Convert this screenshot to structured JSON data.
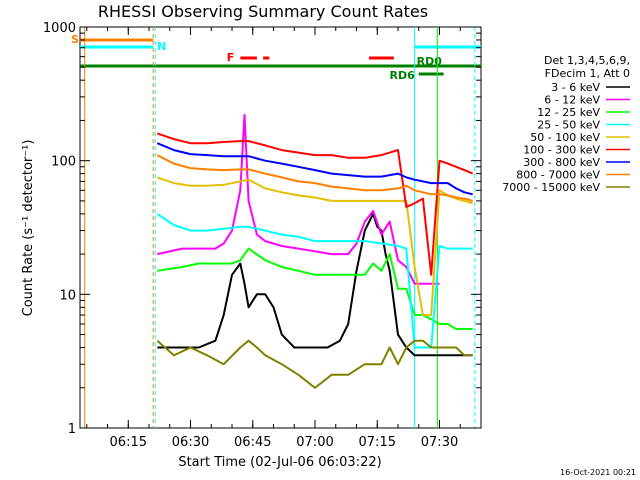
{
  "chart_data": {
    "type": "line",
    "title": "RHESSI Observing Summary Count Rates",
    "xlabel": "Start Time (02-Jul-06 06:03:22)",
    "ylabel": "Count Rate (s⁻¹ detector⁻¹)",
    "y_scale": "log",
    "ylim": [
      1,
      1000
    ],
    "xlim": [
      "06:03:22",
      "07:40:00"
    ],
    "x_ticks": [
      "06:15",
      "06:30",
      "06:45",
      "07:00",
      "07:15",
      "07:30"
    ],
    "y_ticks": [
      "1",
      "10",
      "100",
      "1000"
    ],
    "legend_header": [
      "Det 1,3,4,5,6,9,",
      "FDecim 1, Att 0"
    ],
    "legend_position": "right",
    "footer_date": "16-Oct-2021 00:21",
    "flags": [
      {
        "label": "S",
        "color": "#ff8000",
        "segments": [
          [
            "06:03:22",
            "06:21:00"
          ]
        ]
      },
      {
        "label": "N",
        "color": "#00ffff",
        "segments": [
          [
            "06:03:22",
            "06:21:00"
          ],
          [
            "07:24:00",
            "07:40:00"
          ]
        ]
      },
      {
        "label": "F",
        "color": "#ff0000",
        "segments": [
          [
            "06:42:00",
            "06:46:00"
          ],
          [
            "06:47:30",
            "06:49:00"
          ],
          [
            "07:13:00",
            "07:19:00"
          ]
        ]
      },
      {
        "label": "RD0",
        "color": "#008000",
        "segments": [
          [
            "06:03:22",
            "07:40:00"
          ]
        ]
      },
      {
        "label": "RD6",
        "color": "#008000",
        "segments": [
          [
            "07:25:00",
            "07:31:00"
          ]
        ]
      }
    ],
    "series": [
      {
        "name": "3 - 6 keV",
        "color": "#000000",
        "x": [
          "06:22",
          "06:28",
          "06:32",
          "06:36",
          "06:38",
          "06:40",
          "06:42",
          "06:43",
          "06:44",
          "06:46",
          "06:48",
          "06:50",
          "06:52",
          "06:55",
          "06:58",
          "07:00",
          "07:03",
          "07:06",
          "07:08",
          "07:10",
          "07:12",
          "07:14",
          "07:15",
          "07:16",
          "07:17",
          "07:18",
          "07:20",
          "07:22",
          "07:24",
          "07:26",
          "07:28",
          "07:30",
          "07:32",
          "07:34",
          "07:36",
          "07:38"
        ],
        "values": [
          4,
          4,
          4,
          4.5,
          7,
          14,
          17,
          12,
          8,
          10,
          10,
          8,
          5,
          4,
          4,
          4,
          4,
          4.5,
          6,
          15,
          30,
          40,
          32,
          30,
          20,
          15,
          5,
          4,
          3.5,
          3.5,
          3.5,
          3.5,
          3.5,
          3.5,
          3.5,
          3.5
        ]
      },
      {
        "name": "6 - 12 keV",
        "color": "#ff00ff",
        "x": [
          "06:22",
          "06:28",
          "06:32",
          "06:36",
          "06:38",
          "06:40",
          "06:42",
          "06:43",
          "06:44",
          "06:46",
          "06:48",
          "06:52",
          "06:56",
          "07:00",
          "07:04",
          "07:08",
          "07:10",
          "07:12",
          "07:14",
          "07:16",
          "07:18",
          "07:20",
          "07:22",
          "07:24",
          "07:26",
          "07:28",
          "07:30"
        ],
        "values": [
          20,
          22,
          22,
          22,
          24,
          30,
          60,
          220,
          50,
          28,
          25,
          23,
          22,
          21,
          20,
          20,
          24,
          35,
          42,
          28,
          35,
          18,
          16,
          12,
          12,
          12,
          12
        ]
      },
      {
        "name": "12 - 25 keV",
        "color": "#00ff00",
        "x": [
          "06:22",
          "06:28",
          "06:32",
          "06:36",
          "06:40",
          "06:42",
          "06:44",
          "06:48",
          "06:52",
          "06:56",
          "07:00",
          "07:04",
          "07:08",
          "07:12",
          "07:14",
          "07:16",
          "07:18",
          "07:20",
          "07:22",
          "07:24",
          "07:26",
          "07:28",
          "07:30",
          "07:32",
          "07:34",
          "07:36",
          "07:38"
        ],
        "values": [
          15,
          16,
          17,
          17,
          17,
          18,
          22,
          18,
          16,
          15,
          14,
          14,
          14,
          14,
          17,
          15,
          20,
          11,
          11,
          7,
          7,
          6.5,
          6,
          6,
          5.5,
          5.5,
          5.5
        ]
      },
      {
        "name": "25 - 50 keV",
        "color": "#00ffff",
        "x": [
          "06:22",
          "06:26",
          "06:30",
          "06:34",
          "06:38",
          "06:42",
          "06:44",
          "06:48",
          "06:52",
          "06:56",
          "07:00",
          "07:04",
          "07:08",
          "07:12",
          "07:16",
          "07:20",
          "07:22",
          "07:24",
          "07:26",
          "07:28",
          "07:30",
          "07:32",
          "07:34",
          "07:36",
          "07:38"
        ],
        "values": [
          40,
          33,
          30,
          30,
          31,
          32,
          32,
          30,
          28,
          27,
          25,
          25,
          25,
          25,
          24,
          23,
          22,
          4,
          4,
          4,
          23,
          22,
          22,
          22,
          22
        ]
      },
      {
        "name": "50 - 100 keV",
        "color": "#e0c000",
        "x": [
          "06:22",
          "06:26",
          "06:30",
          "06:34",
          "06:38",
          "06:42",
          "06:44",
          "06:48",
          "06:52",
          "06:56",
          "07:00",
          "07:04",
          "07:08",
          "07:12",
          "07:16",
          "07:20",
          "07:22",
          "07:24",
          "07:26",
          "07:28",
          "07:30",
          "07:32",
          "07:34",
          "07:36",
          "07:38"
        ],
        "values": [
          75,
          68,
          65,
          65,
          66,
          70,
          72,
          62,
          58,
          55,
          53,
          50,
          50,
          50,
          50,
          50,
          50,
          16,
          7,
          7,
          60,
          55,
          52,
          50,
          48
        ]
      },
      {
        "name": "100 - 300 keV",
        "color": "#ff0000",
        "x": [
          "06:22",
          "06:26",
          "06:30",
          "06:34",
          "06:38",
          "06:42",
          "06:44",
          "06:48",
          "06:52",
          "06:56",
          "07:00",
          "07:04",
          "07:08",
          "07:12",
          "07:16",
          "07:20",
          "07:22",
          "07:24",
          "07:26",
          "07:28",
          "07:30",
          "07:32",
          "07:34",
          "07:36",
          "07:38"
        ],
        "values": [
          160,
          145,
          135,
          135,
          138,
          140,
          140,
          130,
          120,
          115,
          110,
          110,
          105,
          105,
          110,
          120,
          45,
          48,
          52,
          14,
          100,
          95,
          90,
          85,
          80
        ]
      },
      {
        "name": "300 - 800 keV",
        "color": "#0000ff",
        "x": [
          "06:22",
          "06:26",
          "06:30",
          "06:34",
          "06:38",
          "06:42",
          "06:44",
          "06:48",
          "06:52",
          "06:56",
          "07:00",
          "07:04",
          "07:08",
          "07:12",
          "07:16",
          "07:20",
          "07:22",
          "07:24",
          "07:26",
          "07:28",
          "07:30",
          "07:32",
          "07:34",
          "07:36",
          "07:38"
        ],
        "values": [
          135,
          120,
          112,
          110,
          108,
          108,
          108,
          100,
          95,
          90,
          85,
          80,
          78,
          76,
          76,
          80,
          75,
          72,
          70,
          68,
          68,
          68,
          62,
          58,
          56
        ]
      },
      {
        "name": "800 - 7000 keV",
        "color": "#ff8000",
        "x": [
          "06:22",
          "06:26",
          "06:30",
          "06:34",
          "06:38",
          "06:42",
          "06:44",
          "06:48",
          "06:52",
          "06:56",
          "07:00",
          "07:04",
          "07:08",
          "07:12",
          "07:16",
          "07:20",
          "07:22",
          "07:24",
          "07:26",
          "07:28",
          "07:30",
          "07:32",
          "07:34",
          "07:36",
          "07:38"
        ],
        "values": [
          110,
          95,
          88,
          86,
          85,
          86,
          86,
          80,
          75,
          70,
          68,
          64,
          62,
          60,
          60,
          62,
          65,
          60,
          58,
          56,
          56,
          55,
          53,
          52,
          50
        ]
      },
      {
        "name": "7000 - 15000 keV",
        "color": "#808000",
        "x": [
          "06:22",
          "06:26",
          "06:30",
          "06:34",
          "06:38",
          "06:42",
          "06:44",
          "06:46",
          "06:48",
          "06:52",
          "06:56",
          "07:00",
          "07:04",
          "07:08",
          "07:12",
          "07:16",
          "07:18",
          "07:20",
          "07:22",
          "07:24",
          "07:26",
          "07:28",
          "07:30",
          "07:32",
          "07:34",
          "07:36",
          "07:38"
        ],
        "values": [
          4.5,
          3.5,
          4,
          3.5,
          3,
          4,
          4.5,
          4,
          3.5,
          3,
          2.5,
          2,
          2.5,
          2.5,
          3,
          3,
          4,
          3,
          4,
          4.5,
          4.5,
          4,
          4,
          4,
          4,
          3.5,
          3.5
        ]
      }
    ]
  }
}
